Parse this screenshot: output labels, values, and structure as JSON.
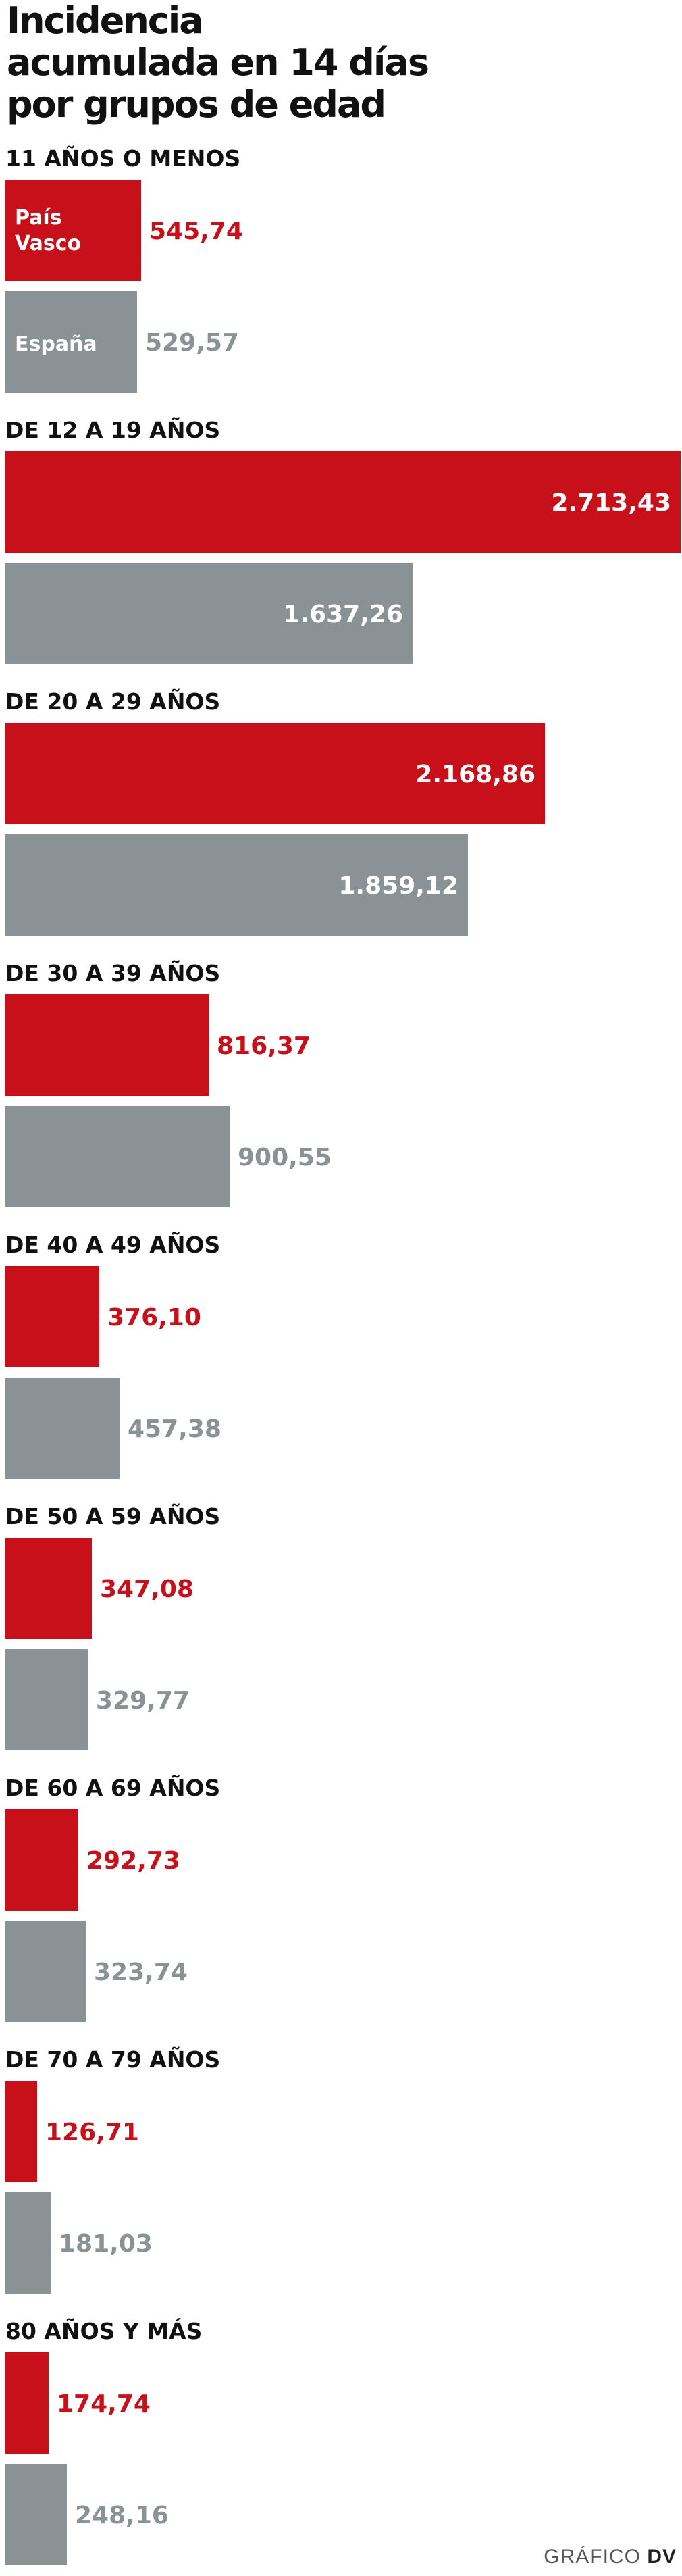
{
  "title": "Incidencia\nacumulada en 14 días\npor grupos de edad",
  "credit": {
    "prefix": "GRÁFICO",
    "brand": "DV"
  },
  "colors": {
    "pais_vasco": "#c8101a",
    "espana": "#8a9296",
    "label_dark": "#111111"
  },
  "chart_data": {
    "type": "bar",
    "orientation": "horizontal",
    "categories": [
      "11 AÑOS O MENOS",
      "DE 12 A 19 AÑOS",
      "DE 20 A 29 AÑOS",
      "DE 30 A 39 AÑOS",
      "DE 40 A 49 AÑOS",
      "DE 50 A 59 AÑOS",
      "DE 60 A 69 AÑOS",
      "DE 70 A 79 AÑOS",
      "80 AÑOS Y MÁS"
    ],
    "series": [
      {
        "name": "País Vasco",
        "values": [
          545.74,
          2713.43,
          2168.86,
          816.37,
          376.1,
          347.08,
          292.73,
          126.71,
          174.74
        ],
        "labels": [
          "545,74",
          "2.713,43",
          "2.168,86",
          "816,37",
          "376,10",
          "347,08",
          "292,73",
          "126,71",
          "174,74"
        ]
      },
      {
        "name": "España",
        "values": [
          529.57,
          1637.26,
          1859.12,
          900.55,
          457.38,
          329.77,
          323.74,
          181.03,
          248.16
        ],
        "labels": [
          "529,57",
          "1.637,26",
          "1.859,12",
          "900,55",
          "457,38",
          "329,77",
          "323,74",
          "181,03",
          "248,16"
        ]
      }
    ],
    "xlim": [
      0,
      2713.43
    ],
    "legend": "inside-first-bars",
    "grid": false
  }
}
